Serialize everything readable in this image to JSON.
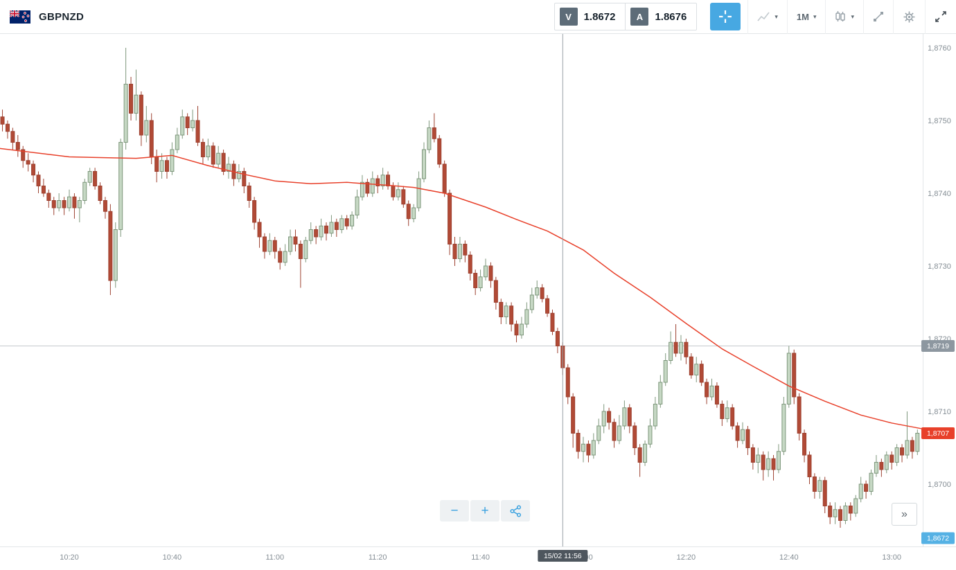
{
  "topbar": {
    "symbol": "GBPNZD",
    "quote": {
      "sell_label": "V",
      "sell_price": "1.8672",
      "buy_label": "A",
      "buy_price": "1.8676"
    },
    "timeframe_label": "1M"
  },
  "controls": {
    "zoom_out_label": "−",
    "zoom_in_label": "+",
    "collapse_label": "»"
  },
  "icons": {
    "flag": "new-zealand-flag",
    "cursor_tool": "crosshair",
    "chart_type": "line-chart",
    "candle_style": "candlesticks",
    "drawing_tool": "trendline",
    "settings": "gear",
    "fullscreen": "expand-arrows",
    "share": "share",
    "zoom_out": "minus",
    "zoom_in": "plus",
    "collapse": "double-chevron-right"
  },
  "chart_data": {
    "type": "candlestick",
    "symbol": "GBPNZD",
    "interval": "1M",
    "price_base": 1.86,
    "pip_unit": 0.0001,
    "y_axis": {
      "labels": [
        {
          "text": "1,8760",
          "pips": 160
        },
        {
          "text": "1,8750",
          "pips": 150
        },
        {
          "text": "1,8740",
          "pips": 140
        },
        {
          "text": "1,8730",
          "pips": 130
        },
        {
          "text": "1,8720",
          "pips": 120
        },
        {
          "text": "1,8710",
          "pips": 110
        },
        {
          "text": "1,8700",
          "pips": 100
        }
      ]
    },
    "x_axis": {
      "start_minute_after_10_00": 7,
      "interval_minutes": 1,
      "labels": [
        {
          "text": "10:20",
          "minute": 20
        },
        {
          "text": "10:40",
          "minute": 40
        },
        {
          "text": "11:00",
          "minute": 60
        },
        {
          "text": "11:20",
          "minute": 80
        },
        {
          "text": "11:40",
          "minute": 100
        },
        {
          "text": "12:00",
          "minute": 120
        },
        {
          "text": "12:20",
          "minute": 140
        },
        {
          "text": "12:40",
          "minute": 160
        },
        {
          "text": "13:00",
          "minute": 180
        }
      ]
    },
    "candles_ohlc_pips": [
      [
        150.5,
        151.5,
        148.5,
        149.5
      ],
      [
        149.5,
        150,
        147.5,
        148.5
      ],
      [
        148.5,
        149,
        146,
        147
      ],
      [
        147,
        148,
        145,
        146
      ],
      [
        146,
        146.5,
        143.5,
        144.5
      ],
      [
        144.5,
        145.5,
        143,
        144
      ],
      [
        144,
        144.5,
        141.5,
        142.5
      ],
      [
        142.5,
        143,
        140,
        141
      ],
      [
        141,
        142,
        139.5,
        140
      ],
      [
        140,
        140.5,
        138,
        139
      ],
      [
        139,
        139.5,
        137,
        138
      ],
      [
        138,
        140,
        137.5,
        139
      ],
      [
        139,
        139.5,
        137,
        138
      ],
      [
        138,
        140.5,
        137.5,
        139.5
      ],
      [
        139.5,
        140,
        136.5,
        138
      ],
      [
        138,
        139.5,
        136,
        139
      ],
      [
        139,
        142,
        138.5,
        141.5
      ],
      [
        141.5,
        143.5,
        141,
        143
      ],
      [
        143,
        143.5,
        140.5,
        141
      ],
      [
        141,
        141.5,
        138.5,
        139
      ],
      [
        139,
        139.5,
        136.5,
        137.5
      ],
      [
        137.5,
        138.5,
        126,
        128
      ],
      [
        128,
        136,
        127,
        135
      ],
      [
        135,
        147.5,
        134,
        147
      ],
      [
        147,
        160,
        146,
        155
      ],
      [
        155,
        156,
        150,
        151
      ],
      [
        151,
        157,
        150,
        153.5
      ],
      [
        153.5,
        154,
        146.5,
        148
      ],
      [
        148,
        152,
        147,
        150
      ],
      [
        150,
        151,
        144,
        145
      ],
      [
        145,
        146,
        141.5,
        143
      ],
      [
        143,
        145.5,
        142,
        144.5
      ],
      [
        144.5,
        145,
        142,
        143
      ],
      [
        143,
        147,
        142.5,
        146
      ],
      [
        146,
        149,
        145.5,
        148
      ],
      [
        148,
        151.5,
        147.5,
        150.5
      ],
      [
        150.5,
        151,
        148,
        149
      ],
      [
        149,
        151.5,
        148.5,
        150
      ],
      [
        150,
        152,
        146.5,
        147
      ],
      [
        147,
        147.5,
        144,
        145
      ],
      [
        145,
        147.5,
        144.5,
        146.5
      ],
      [
        146.5,
        147,
        143.5,
        144
      ],
      [
        144,
        146.5,
        143.5,
        145.5
      ],
      [
        145.5,
        146,
        142.5,
        143
      ],
      [
        143,
        145,
        142,
        144
      ],
      [
        144,
        144.5,
        141,
        142
      ],
      [
        142,
        144,
        141.5,
        143
      ],
      [
        143,
        143.5,
        140,
        141
      ],
      [
        141,
        141.5,
        138,
        139
      ],
      [
        139,
        139.5,
        135,
        136
      ],
      [
        136,
        136.5,
        132.5,
        134
      ],
      [
        134,
        134.5,
        131,
        132
      ],
      [
        132,
        134.5,
        131.5,
        133.5
      ],
      [
        133.5,
        134,
        131,
        132
      ],
      [
        132,
        132.5,
        129.5,
        130.5
      ],
      [
        130.5,
        133,
        130,
        132
      ],
      [
        132,
        135,
        131.5,
        134
      ],
      [
        134,
        135,
        132,
        133
      ],
      [
        133,
        133.5,
        127,
        131
      ],
      [
        131,
        134,
        130.5,
        133.5
      ],
      [
        133.5,
        136,
        133,
        135
      ],
      [
        135,
        135.5,
        133,
        134
      ],
      [
        134,
        136.5,
        133.5,
        135.5
      ],
      [
        135.5,
        136,
        133.5,
        134.5
      ],
      [
        134.5,
        137,
        134,
        136
      ],
      [
        136,
        136.5,
        134,
        135
      ],
      [
        135,
        137,
        134.5,
        136.5
      ],
      [
        136.5,
        137,
        135,
        135.5
      ],
      [
        135.5,
        137.5,
        135,
        137
      ],
      [
        137,
        140.5,
        136.5,
        139.5
      ],
      [
        139.5,
        142.5,
        139,
        141.5
      ],
      [
        141.5,
        142,
        139.5,
        140
      ],
      [
        140,
        143,
        139.5,
        142
      ],
      [
        142,
        142.5,
        140,
        141
      ],
      [
        141,
        143.5,
        140.5,
        142.5
      ],
      [
        142.5,
        143,
        140.5,
        141
      ],
      [
        141,
        141.5,
        139,
        139.5
      ],
      [
        139.5,
        141.5,
        139,
        140.5
      ],
      [
        140.5,
        141,
        138,
        138.5
      ],
      [
        138.5,
        139,
        135.5,
        136.5
      ],
      [
        136.5,
        138.5,
        136,
        138
      ],
      [
        138,
        143,
        137.5,
        142
      ],
      [
        142,
        147,
        141.5,
        146
      ],
      [
        146,
        150,
        145.5,
        149
      ],
      [
        149,
        151,
        147,
        147.5
      ],
      [
        147.5,
        148,
        143.5,
        144
      ],
      [
        144,
        144.5,
        139.5,
        140
      ],
      [
        140,
        140.5,
        131.5,
        133
      ],
      [
        133,
        134,
        130,
        131
      ],
      [
        131,
        134,
        130.5,
        133
      ],
      [
        133,
        133.5,
        130.5,
        131.5
      ],
      [
        131.5,
        132,
        128,
        129
      ],
      [
        129,
        129.5,
        126,
        127
      ],
      [
        127,
        129.5,
        126.5,
        128.5
      ],
      [
        128.5,
        131,
        128,
        130
      ],
      [
        130,
        130.5,
        127,
        128
      ],
      [
        128,
        128.5,
        124,
        125
      ],
      [
        125,
        125.5,
        122,
        123
      ],
      [
        123,
        125,
        122,
        124.5
      ],
      [
        124.5,
        125,
        121,
        122
      ],
      [
        122,
        122.5,
        119.5,
        120.5
      ],
      [
        120.5,
        123,
        120,
        122
      ],
      [
        122,
        125,
        121.5,
        124
      ],
      [
        124,
        127,
        123.5,
        126
      ],
      [
        126,
        128,
        125.5,
        127
      ],
      [
        127,
        127.5,
        125,
        125.5
      ],
      [
        125.5,
        126,
        123,
        123.5
      ],
      [
        123.5,
        124,
        120.5,
        121
      ],
      [
        121,
        121.5,
        118,
        119
      ],
      [
        119,
        119.5,
        115,
        116
      ],
      [
        116,
        116.5,
        111,
        112
      ],
      [
        112,
        112.5,
        105,
        107
      ],
      [
        107,
        107.5,
        103.5,
        104.5
      ],
      [
        104.5,
        106.5,
        103,
        105.5
      ],
      [
        105.5,
        106,
        103,
        104
      ],
      [
        104,
        107,
        103.5,
        106
      ],
      [
        106,
        109,
        105.5,
        108
      ],
      [
        108,
        111,
        107,
        110
      ],
      [
        110,
        110.5,
        107.5,
        108.5
      ],
      [
        108.5,
        109,
        105,
        106
      ],
      [
        106,
        109.5,
        105.5,
        108
      ],
      [
        108,
        111.5,
        107.5,
        110.5
      ],
      [
        110.5,
        111,
        107,
        108
      ],
      [
        108,
        108.5,
        104,
        105
      ],
      [
        105,
        105.5,
        101,
        103
      ],
      [
        103,
        106,
        102.5,
        105.5
      ],
      [
        105.5,
        109,
        105,
        108
      ],
      [
        108,
        112,
        107.5,
        111
      ],
      [
        111,
        115,
        110.5,
        114
      ],
      [
        114,
        118,
        113.5,
        117
      ],
      [
        117,
        121,
        116.5,
        119.5
      ],
      [
        119.5,
        122,
        117.5,
        118
      ],
      [
        118,
        120.5,
        117,
        119.5
      ],
      [
        119.5,
        120,
        116.5,
        117.5
      ],
      [
        117.5,
        118,
        114.5,
        115
      ],
      [
        115,
        117.5,
        114,
        116.5
      ],
      [
        116.5,
        117,
        113.5,
        114
      ],
      [
        114,
        114.5,
        111,
        112
      ],
      [
        112,
        114.5,
        111.5,
        113.5
      ],
      [
        113.5,
        114,
        110.5,
        111
      ],
      [
        111,
        111.5,
        108,
        109
      ],
      [
        109,
        111.5,
        108.5,
        110.5
      ],
      [
        110.5,
        111,
        107.5,
        108
      ],
      [
        108,
        108.5,
        105,
        106
      ],
      [
        106,
        108.5,
        105.5,
        107.5
      ],
      [
        107.5,
        108,
        104,
        105
      ],
      [
        105,
        105.5,
        102,
        103
      ],
      [
        103,
        105,
        101.5,
        104
      ],
      [
        104,
        104.5,
        100.5,
        102
      ],
      [
        102,
        104.5,
        101,
        103.5
      ],
      [
        103.5,
        104,
        100.5,
        102
      ],
      [
        102,
        105.5,
        101.5,
        104.5
      ],
      [
        104.5,
        112,
        104,
        111
      ],
      [
        111,
        119,
        110.5,
        118
      ],
      [
        118,
        118.5,
        111,
        112
      ],
      [
        112,
        112.5,
        106,
        107
      ],
      [
        107,
        107.5,
        103,
        104
      ],
      [
        104,
        104.5,
        100,
        101
      ],
      [
        101,
        101.5,
        98,
        99
      ],
      [
        99,
        101,
        98,
        100.5
      ],
      [
        100.5,
        101,
        96,
        97
      ],
      [
        97,
        97.5,
        94.5,
        95.5
      ],
      [
        95.5,
        97.5,
        94.5,
        96.5
      ],
      [
        96.5,
        97,
        94,
        95
      ],
      [
        95,
        97.5,
        94.5,
        97
      ],
      [
        97,
        97.5,
        95,
        96
      ],
      [
        96,
        98.5,
        95.5,
        98
      ],
      [
        98,
        101,
        97.5,
        100
      ],
      [
        100,
        100.5,
        98,
        99
      ],
      [
        99,
        102,
        98.5,
        101.5
      ],
      [
        101.5,
        104,
        101,
        103
      ],
      [
        103,
        103.5,
        101,
        102
      ],
      [
        102,
        104.5,
        101.5,
        104
      ],
      [
        104,
        104.5,
        102,
        103
      ],
      [
        103,
        105.5,
        102.5,
        105
      ],
      [
        105,
        105.5,
        103,
        104
      ],
      [
        104,
        110,
        103.5,
        106
      ],
      [
        106,
        106.5,
        103.5,
        104.5
      ],
      [
        104.5,
        107.5,
        104,
        107
      ]
    ],
    "ma_line_points": [
      [
        6,
        146.2
      ],
      [
        20,
        145.0
      ],
      [
        33,
        144.8
      ],
      [
        40,
        145.2
      ],
      [
        47,
        143.8
      ],
      [
        54,
        142.6
      ],
      [
        60,
        141.7
      ],
      [
        67,
        141.3
      ],
      [
        74,
        141.5
      ],
      [
        82,
        141.1
      ],
      [
        87,
        140.8
      ],
      [
        93,
        140.0
      ],
      [
        101,
        138.1
      ],
      [
        107,
        136.4
      ],
      [
        113,
        134.8
      ],
      [
        120,
        132.2
      ],
      [
        126,
        129.0
      ],
      [
        133,
        125.7
      ],
      [
        140,
        122.1
      ],
      [
        147,
        118.6
      ],
      [
        153,
        116.2
      ],
      [
        160,
        113.5
      ],
      [
        167,
        111.4
      ],
      [
        174,
        109.5
      ],
      [
        180,
        108.4
      ],
      [
        186,
        107.6
      ]
    ],
    "crosshair": {
      "minute_after_10_00": 116,
      "time_label": "15/02 11:56",
      "price_pips": 119,
      "price_label": "1,8719"
    },
    "last_price": {
      "pips": 107,
      "label": "1,8707"
    },
    "sell_price_marker": {
      "label": "1,8672",
      "position": "pinned-bottom"
    },
    "colors": {
      "up_fill": "#c6d8c4",
      "up_stroke": "#7e977c",
      "down_fill": "#b14a36",
      "down_stroke": "#9d4130",
      "ma_line": "#e8402a",
      "crosshair": "#9aa1a7",
      "level_line": "#c3c8cc",
      "axis_text": "#858e95",
      "axis_line": "#e3e6e8",
      "badge_level": "#8d97a0",
      "badge_last": "#e8402a",
      "badge_bid": "#55b1e4",
      "badge_time": "#4e565e",
      "accent_blue": "#47a8e2"
    }
  }
}
